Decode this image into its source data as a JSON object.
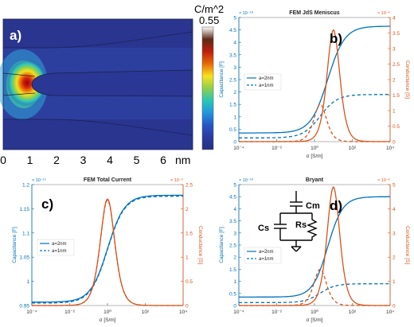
{
  "colors": {
    "blue": "#0072BD",
    "orange": "#D95319"
  },
  "field_map": {
    "panel_label": "a)",
    "colorbar": {
      "unit": "C/m^2",
      "max_label": "0.55",
      "stops": [
        "#ffffff",
        "#5c2a17",
        "#c11d0c",
        "#e86a05",
        "#f8e21c",
        "#8cd04b",
        "#28c7b8",
        "#2196df",
        "#2557c6",
        "#2a3a9e",
        "#253085"
      ]
    },
    "x_ticks": [
      "0",
      "1",
      "2",
      "3",
      "4",
      "5",
      "6"
    ],
    "x_unit": "nm"
  },
  "chart_data": [
    {
      "type": "line",
      "panel_label": "b)",
      "title": "FEM JdS Meniscus",
      "xlabel": "σ [S/m]",
      "ylabel_left": "Capacitance [F]",
      "ylabel_right": "Conductance [S]",
      "left_exponent": "× 10⁻¹⁸",
      "right_exponent": "× 10⁻⁶",
      "xscale": "log",
      "xlim": [
        0.0001,
        10000
      ],
      "x_ticks": [
        "10⁻⁴",
        "10⁻²",
        "10⁰",
        "10²",
        "10⁴"
      ],
      "ylim_left": [
        0,
        5
      ],
      "y_ticks_left": [
        "0",
        "0.5",
        "1",
        "1.5",
        "2",
        "2.5",
        "3",
        "3.5",
        "4",
        "4.5",
        "5"
      ],
      "ylim_right": [
        0,
        4
      ],
      "y_ticks_right": [
        "0",
        "0.5",
        "1",
        "1.5",
        "2",
        "2.5",
        "3",
        "3.5",
        "4"
      ],
      "legend": [
        "a=2nm",
        "a=1nm"
      ],
      "legend_position": "middle-left",
      "series": [
        {
          "name": "a=2nm",
          "axis": "left",
          "kind": "step",
          "low": 0.35,
          "high": 4.65,
          "center": 5,
          "width": 0.45
        },
        {
          "name": "a=1nm",
          "axis": "left",
          "kind": "step",
          "low": 0.15,
          "high": 1.9,
          "center": 2,
          "width": 0.45
        },
        {
          "name": "a=2nm",
          "axis": "right",
          "kind": "peak",
          "peak": 3.6,
          "center": 10,
          "width": 0.28
        },
        {
          "name": "a=1nm",
          "axis": "right",
          "kind": "peak",
          "peak": 1.2,
          "center": 2,
          "width": 0.28
        }
      ]
    },
    {
      "type": "line",
      "panel_label": "c)",
      "title": "FEM Total Current",
      "xlabel": "σ [S/m]",
      "ylabel_left": "Capacitance [F]",
      "ylabel_right": "Conductance [S]",
      "left_exponent": "× 10⁻¹⁵",
      "right_exponent": "× 10⁻⁶",
      "xscale": "log",
      "xlim": [
        0.0001,
        10000
      ],
      "x_ticks": [
        "10⁻⁴",
        "10⁻²",
        "10⁰",
        "10²",
        "10⁴"
      ],
      "ylim_left": [
        0.95,
        1.2
      ],
      "y_ticks_left": [
        "0.95",
        "1",
        "1.05",
        "1.1",
        "1.15",
        "1.2"
      ],
      "ylim_right": [
        0,
        2.5
      ],
      "y_ticks_right": [
        "0",
        "0.5",
        "1",
        "1.5",
        "2",
        "2.5"
      ],
      "legend": [
        "a=2nm",
        "a=1nm"
      ],
      "legend_position": "middle-left",
      "series": [
        {
          "name": "a=2nm",
          "axis": "left",
          "kind": "step",
          "low": 0.957,
          "high": 1.178,
          "center": 1,
          "width": 0.45
        },
        {
          "name": "a=1nm",
          "axis": "left",
          "kind": "step",
          "low": 0.955,
          "high": 1.176,
          "center": 1,
          "width": 0.45
        },
        {
          "name": "a=2nm",
          "axis": "right",
          "kind": "peak",
          "peak": 2.2,
          "center": 1,
          "width": 0.32
        },
        {
          "name": "a=1nm",
          "axis": "right",
          "kind": "peak",
          "peak": 2.18,
          "center": 1,
          "width": 0.32
        }
      ]
    },
    {
      "type": "line",
      "panel_label": "d)",
      "title": "Bryant",
      "xlabel": "σ [S/m]",
      "ylabel_left": "Capacitance [F]",
      "ylabel_right": "Conductance [S]",
      "left_exponent": "× 10⁻¹⁸",
      "right_exponent": "× 10⁻⁶",
      "xscale": "log",
      "xlim": [
        0.0001,
        10000
      ],
      "x_ticks": [
        "10⁻⁴",
        "10⁻²",
        "10⁰",
        "10²",
        "10⁴"
      ],
      "ylim_left": [
        0,
        5
      ],
      "y_ticks_left": [
        "0",
        "0.5",
        "1",
        "1.5",
        "2",
        "2.5",
        "3",
        "3.5",
        "4",
        "4.5",
        "5"
      ],
      "ylim_right": [
        0,
        5
      ],
      "y_ticks_right": [
        "0",
        "1",
        "2",
        "3",
        "4",
        "5"
      ],
      "legend": [
        "a=2nm",
        "a=1nm"
      ],
      "legend_position": "middle-left",
      "circuit_labels": [
        "Cm",
        "Cs",
        "Rs"
      ],
      "series": [
        {
          "name": "a=2nm",
          "axis": "left",
          "kind": "step",
          "low": 0.35,
          "high": 4.5,
          "center": 5,
          "width": 0.4
        },
        {
          "name": "a=1nm",
          "axis": "left",
          "kind": "step",
          "low": 0.12,
          "high": 0.9,
          "center": 2,
          "width": 0.4
        },
        {
          "name": "a=2nm",
          "axis": "right",
          "kind": "peak",
          "peak": 4.9,
          "center": 10,
          "width": 0.28
        },
        {
          "name": "a=1nm",
          "axis": "right",
          "kind": "peak",
          "peak": 1.5,
          "center": 2,
          "width": 0.28
        }
      ]
    }
  ]
}
